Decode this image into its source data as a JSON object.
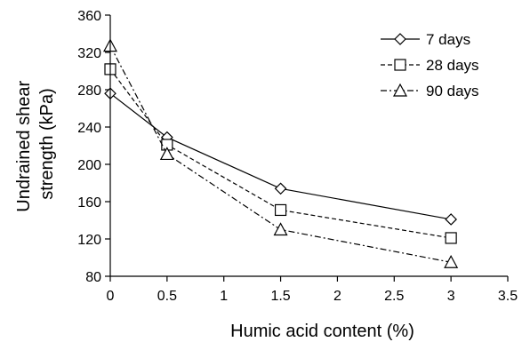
{
  "chart_data": {
    "type": "line",
    "xlabel": "Humic acid content (%)",
    "ylabel_lines": [
      "Undrained  shear",
      "strength  (kPa)"
    ],
    "xlim": [
      0,
      3.5
    ],
    "ylim": [
      80,
      360
    ],
    "xticks": [
      0,
      0.5,
      1,
      1.5,
      2,
      2.5,
      3,
      3.5
    ],
    "xtick_labels": [
      "0",
      "0.5",
      "1",
      "1.5",
      "2",
      "2.5",
      "3",
      "3.5"
    ],
    "yticks": [
      80,
      120,
      160,
      200,
      240,
      280,
      320,
      360
    ],
    "ytick_labels": [
      "80",
      "120",
      "160",
      "200",
      "240",
      "280",
      "320",
      "360"
    ],
    "grid": false,
    "legend_position": "top-right",
    "x": [
      0,
      0.5,
      1.5,
      3
    ],
    "series": [
      {
        "name": "7 days",
        "marker": "diamond",
        "line_style": "solid",
        "values": [
          276,
          229,
          174,
          141
        ]
      },
      {
        "name": "28 days",
        "marker": "square",
        "line_style": "dashed",
        "values": [
          302,
          221,
          151,
          121
        ]
      },
      {
        "name": "90 days",
        "marker": "triangle",
        "line_style": "dash-dot",
        "values": [
          327,
          211,
          130,
          95
        ]
      }
    ],
    "colors": {
      "line": "#000000",
      "marker_fill": "#ffffff",
      "background": "#ffffff"
    }
  }
}
